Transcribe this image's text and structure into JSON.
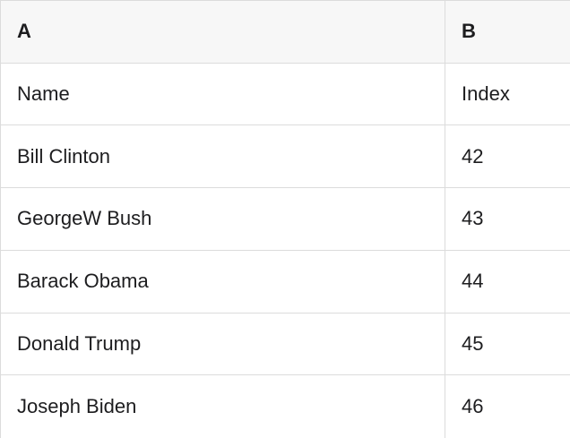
{
  "table": {
    "header": {
      "a": "A",
      "b": "B"
    },
    "rows": [
      {
        "a": "Name",
        "b": "Index"
      },
      {
        "a": "Bill Clinton",
        "b": "42"
      },
      {
        "a": "GeorgeW Bush",
        "b": "43"
      },
      {
        "a": "Barack Obama",
        "b": "44"
      },
      {
        "a": "Donald Trump",
        "b": "45"
      },
      {
        "a": "Joseph Biden",
        "b": "46"
      }
    ]
  },
  "colors": {
    "header_bg": "#f7f7f7",
    "row_bg": "#ffffff",
    "border_color": "#dcdcdc",
    "text_color": "#1d1d1f"
  }
}
